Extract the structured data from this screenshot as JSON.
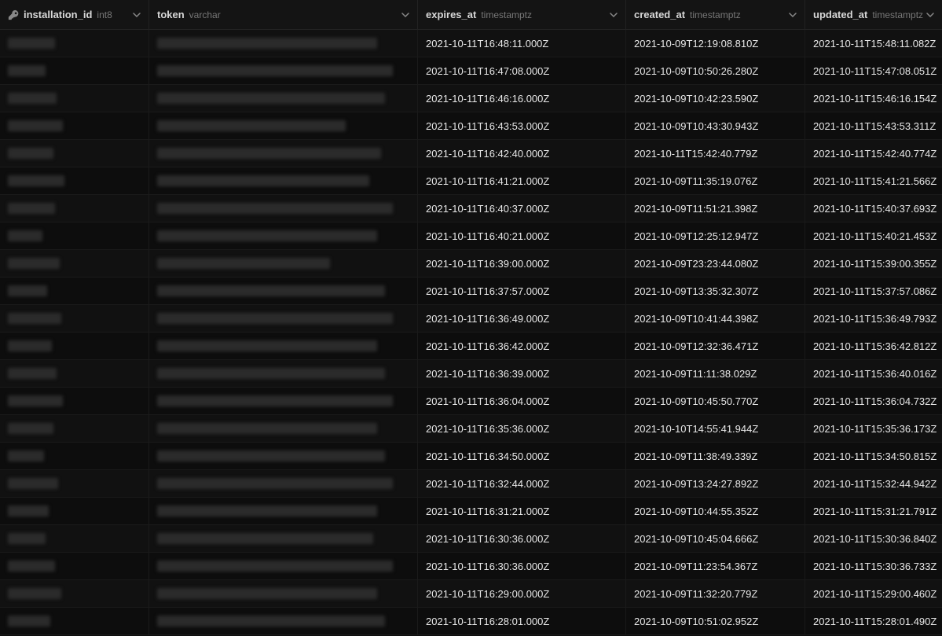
{
  "columns": [
    {
      "name": "installation_id",
      "type": "int8",
      "width_class": "col-id",
      "has_key_icon": true
    },
    {
      "name": "token",
      "type": "varchar",
      "width_class": "col-token",
      "has_key_icon": false
    },
    {
      "name": "expires_at",
      "type": "timestamptz",
      "width_class": "col-expires",
      "has_key_icon": false
    },
    {
      "name": "created_at",
      "type": "timestamptz",
      "width_class": "col-created",
      "has_key_icon": false
    },
    {
      "name": "updated_at",
      "type": "timestamptz",
      "width_class": "col-updated",
      "has_key_icon": false
    }
  ],
  "rows": [
    {
      "id_w": 60,
      "token_w": 280,
      "expires_at": "2021-10-11T16:48:11.000Z",
      "created_at": "2021-10-09T12:19:08.810Z",
      "updated_at": "2021-10-11T15:48:11.082Z"
    },
    {
      "id_w": 48,
      "token_w": 300,
      "expires_at": "2021-10-11T16:47:08.000Z",
      "created_at": "2021-10-09T10:50:26.280Z",
      "updated_at": "2021-10-11T15:47:08.051Z"
    },
    {
      "id_w": 62,
      "token_w": 290,
      "expires_at": "2021-10-11T16:46:16.000Z",
      "created_at": "2021-10-09T10:42:23.590Z",
      "updated_at": "2021-10-11T15:46:16.154Z"
    },
    {
      "id_w": 70,
      "token_w": 240,
      "expires_at": "2021-10-11T16:43:53.000Z",
      "created_at": "2021-10-09T10:43:30.943Z",
      "updated_at": "2021-10-11T15:43:53.311Z"
    },
    {
      "id_w": 58,
      "token_w": 285,
      "expires_at": "2021-10-11T16:42:40.000Z",
      "created_at": "2021-10-11T15:42:40.779Z",
      "updated_at": "2021-10-11T15:42:40.774Z"
    },
    {
      "id_w": 72,
      "token_w": 270,
      "expires_at": "2021-10-11T16:41:21.000Z",
      "created_at": "2021-10-09T11:35:19.076Z",
      "updated_at": "2021-10-11T15:41:21.566Z"
    },
    {
      "id_w": 60,
      "token_w": 300,
      "expires_at": "2021-10-11T16:40:37.000Z",
      "created_at": "2021-10-09T11:51:21.398Z",
      "updated_at": "2021-10-11T15:40:37.693Z"
    },
    {
      "id_w": 44,
      "token_w": 280,
      "expires_at": "2021-10-11T16:40:21.000Z",
      "created_at": "2021-10-09T12:25:12.947Z",
      "updated_at": "2021-10-11T15:40:21.453Z"
    },
    {
      "id_w": 66,
      "token_w": 220,
      "expires_at": "2021-10-11T16:39:00.000Z",
      "created_at": "2021-10-09T23:23:44.080Z",
      "updated_at": "2021-10-11T15:39:00.355Z"
    },
    {
      "id_w": 50,
      "token_w": 290,
      "expires_at": "2021-10-11T16:37:57.000Z",
      "created_at": "2021-10-09T13:35:32.307Z",
      "updated_at": "2021-10-11T15:37:57.086Z"
    },
    {
      "id_w": 68,
      "token_w": 300,
      "expires_at": "2021-10-11T16:36:49.000Z",
      "created_at": "2021-10-09T10:41:44.398Z",
      "updated_at": "2021-10-11T15:36:49.793Z"
    },
    {
      "id_w": 56,
      "token_w": 280,
      "expires_at": "2021-10-11T16:36:42.000Z",
      "created_at": "2021-10-09T12:32:36.471Z",
      "updated_at": "2021-10-11T15:36:42.812Z"
    },
    {
      "id_w": 62,
      "token_w": 290,
      "expires_at": "2021-10-11T16:36:39.000Z",
      "created_at": "2021-10-09T11:11:38.029Z",
      "updated_at": "2021-10-11T15:36:40.016Z"
    },
    {
      "id_w": 70,
      "token_w": 300,
      "expires_at": "2021-10-11T16:36:04.000Z",
      "created_at": "2021-10-09T10:45:50.770Z",
      "updated_at": "2021-10-11T15:36:04.732Z"
    },
    {
      "id_w": 58,
      "token_w": 280,
      "expires_at": "2021-10-11T16:35:36.000Z",
      "created_at": "2021-10-10T14:55:41.944Z",
      "updated_at": "2021-10-11T15:35:36.173Z"
    },
    {
      "id_w": 46,
      "token_w": 290,
      "expires_at": "2021-10-11T16:34:50.000Z",
      "created_at": "2021-10-09T11:38:49.339Z",
      "updated_at": "2021-10-11T15:34:50.815Z"
    },
    {
      "id_w": 64,
      "token_w": 300,
      "expires_at": "2021-10-11T16:32:44.000Z",
      "created_at": "2021-10-09T13:24:27.892Z",
      "updated_at": "2021-10-11T15:32:44.942Z"
    },
    {
      "id_w": 52,
      "token_w": 280,
      "expires_at": "2021-10-11T16:31:21.000Z",
      "created_at": "2021-10-09T10:44:55.352Z",
      "updated_at": "2021-10-11T15:31:21.791Z"
    },
    {
      "id_w": 48,
      "token_w": 275,
      "expires_at": "2021-10-11T16:30:36.000Z",
      "created_at": "2021-10-09T10:45:04.666Z",
      "updated_at": "2021-10-11T15:30:36.840Z"
    },
    {
      "id_w": 60,
      "token_w": 300,
      "expires_at": "2021-10-11T16:30:36.000Z",
      "created_at": "2021-10-09T11:23:54.367Z",
      "updated_at": "2021-10-11T15:30:36.733Z"
    },
    {
      "id_w": 68,
      "token_w": 280,
      "expires_at": "2021-10-11T16:29:00.000Z",
      "created_at": "2021-10-09T11:32:20.779Z",
      "updated_at": "2021-10-11T15:29:00.460Z"
    },
    {
      "id_w": 54,
      "token_w": 290,
      "expires_at": "2021-10-11T16:28:01.000Z",
      "created_at": "2021-10-09T10:51:02.952Z",
      "updated_at": "2021-10-11T15:28:01.490Z"
    }
  ],
  "colors": {
    "background": "#0f0f0f",
    "header_bg": "#141414",
    "row_odd": "#111111",
    "row_even": "#0d0d0d",
    "border": "#1a1a1a",
    "text": "#e8e8e8",
    "muted": "#777777",
    "redacted": "#2b2b2b"
  }
}
